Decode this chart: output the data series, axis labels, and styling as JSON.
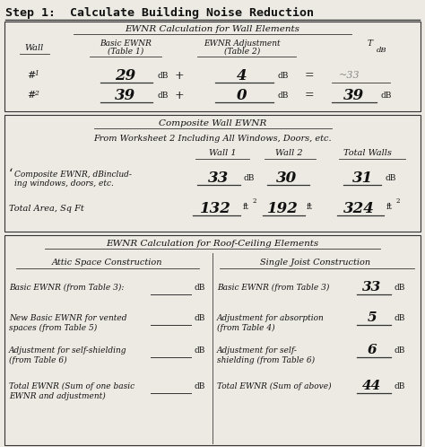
{
  "title": "Step 1:  Calculate Building Noise Reduction",
  "bg_color": "#edeae4",
  "section1_title": "EWNR Calculation for Wall Elements",
  "section2_title": "Composite Wall EWNR",
  "section3_title": "EWNR Calculation for Roof-Ceiling Elements",
  "wall1_label": "#1",
  "wall1_basic": "29",
  "wall1_adj": "4",
  "wall2_label": "#2",
  "wall2_basic": "39",
  "wall2_adj": "0",
  "wall2_total": "39",
  "composite_subtitle": "From Worksheet 2 Including All Windows, Doors, etc.",
  "comp_col1": "Wall 1",
  "comp_col2": "Wall 2",
  "comp_col3": "Total Walls",
  "comp_ewnr_w1": "33",
  "comp_ewnr_w2": "30",
  "comp_ewnr_total": "31",
  "comp_area_w1": "132",
  "comp_area_w2": "192",
  "comp_area_total": "324",
  "attic_title": "Attic Space Construction",
  "single_title": "Single Joist Construction",
  "single_basic_val": "33",
  "single_abs_val": "5",
  "single_self_val": "6",
  "single_total_val": "44"
}
